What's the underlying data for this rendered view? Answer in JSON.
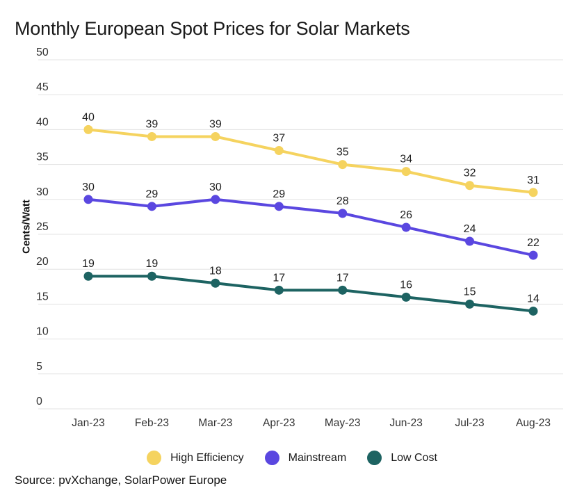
{
  "title": "Monthly European Spot Prices for Solar Markets",
  "source_text": "Source: pvXchange, SolarPower Europe",
  "colors": {
    "background": "#ffffff",
    "gridline": "#e3e3e3",
    "title_text": "#1a1a1a",
    "tick_label": "#333333",
    "data_label": "#1f1f1f"
  },
  "chart_data": {
    "type": "line",
    "title": "Monthly European Spot Prices for Solar Markets",
    "categories": [
      "Jan-23",
      "Feb-23",
      "Mar-23",
      "Apr-23",
      "May-23",
      "Jun-23",
      "Jul-23",
      "Aug-23"
    ],
    "series": [
      {
        "name": "High Efficiency",
        "color": "#f5d35f",
        "values": [
          40,
          39,
          39,
          37,
          35,
          34,
          32,
          31
        ]
      },
      {
        "name": "Mainstream",
        "color": "#5a47e0",
        "values": [
          30,
          29,
          30,
          29,
          28,
          26,
          24,
          22
        ]
      },
      {
        "name": "Low Cost",
        "color": "#1d6362",
        "values": [
          19,
          19,
          18,
          17,
          17,
          16,
          15,
          14
        ]
      }
    ],
    "xlabel": "",
    "ylabel": "Cents/Watt",
    "ylim": [
      0,
      50
    ],
    "ytick_step": 5,
    "grid": "horizontal-only",
    "legend_position": "bottom",
    "marker": "circle",
    "data_labels": "above-points",
    "source": "Source: pvXchange, SolarPower Europe"
  }
}
